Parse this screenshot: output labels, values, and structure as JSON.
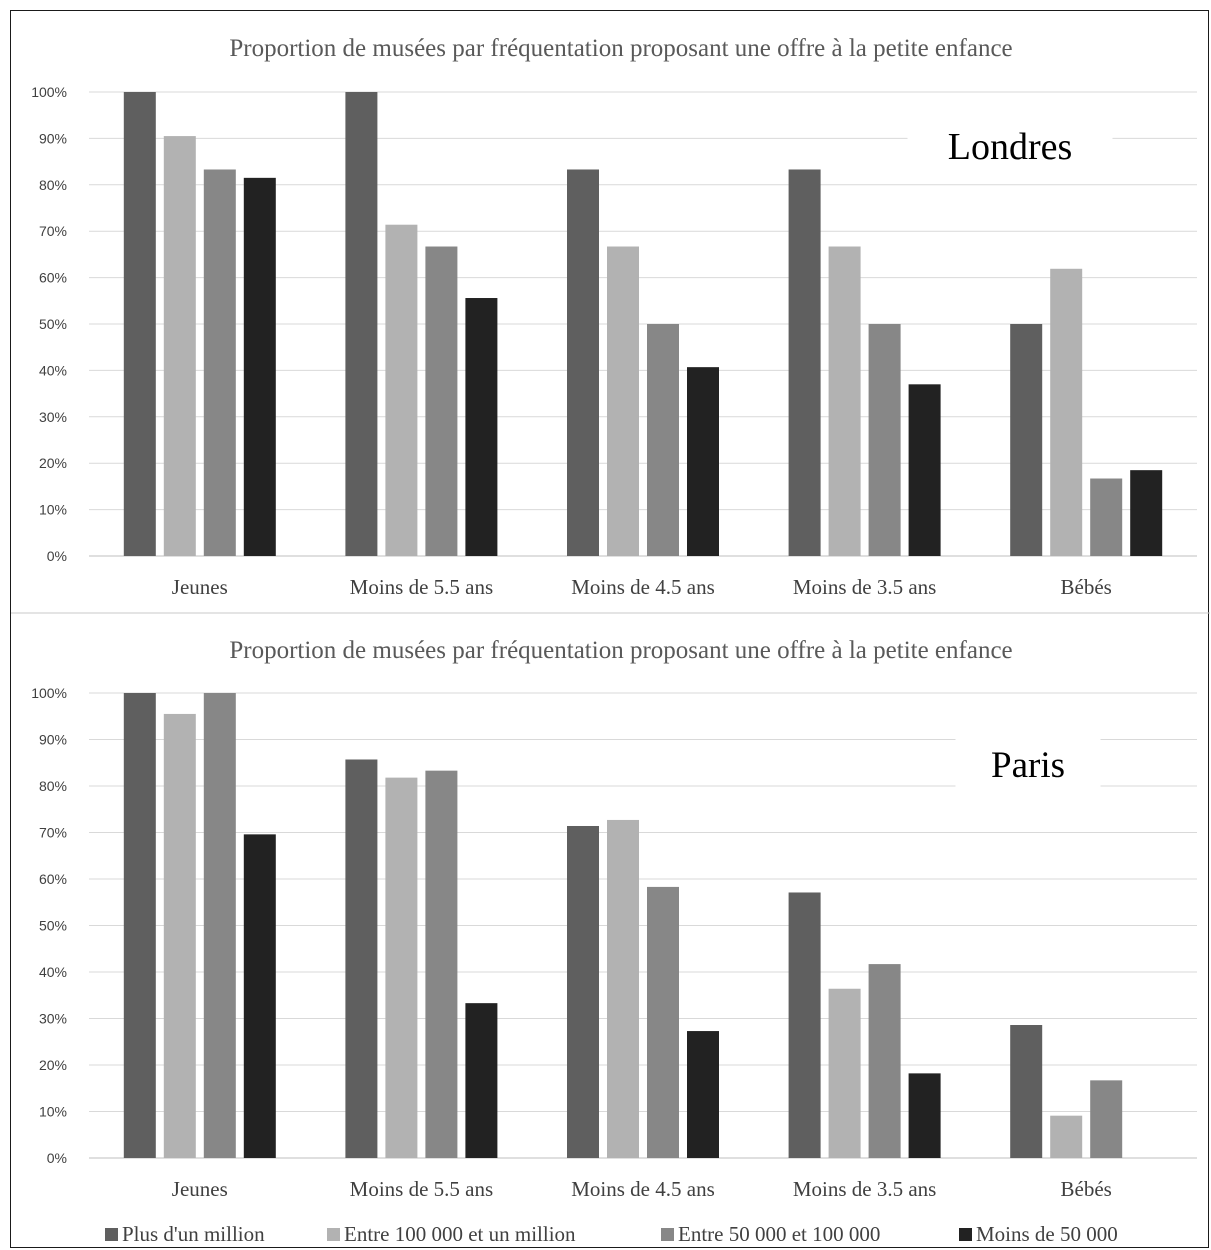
{
  "chart_data": [
    {
      "type": "bar",
      "title": "Proportion de musées par fréquentation proposant une offre à la petite enfance",
      "annotation": "Londres",
      "categories": [
        "Jeunes",
        "Moins de 5.5 ans",
        "Moins de 4.5 ans",
        "Moins de 3.5 ans",
        "Bébés"
      ],
      "series": [
        {
          "name": "Plus d'un million",
          "values": [
            100,
            100,
            83.3,
            83.3,
            50
          ]
        },
        {
          "name": "Entre 100 000 et un million",
          "values": [
            90.5,
            71.4,
            66.7,
            66.7,
            61.9
          ]
        },
        {
          "name": "Entre 50 000 et 100 000",
          "values": [
            83.3,
            66.7,
            50,
            50,
            16.7
          ]
        },
        {
          "name": "Moins de 50 000",
          "values": [
            81.5,
            55.6,
            40.7,
            37,
            18.5
          ]
        }
      ],
      "ylim": [
        0,
        100
      ],
      "yticks": [
        "0%",
        "10%",
        "20%",
        "30%",
        "40%",
        "50%",
        "60%",
        "70%",
        "80%",
        "90%",
        "100%"
      ],
      "grid": true
    },
    {
      "type": "bar",
      "title": "Proportion de musées par fréquentation proposant une offre à la petite enfance",
      "annotation": "Paris",
      "categories": [
        "Jeunes",
        "Moins de 5.5 ans",
        "Moins de 4.5 ans",
        "Moins de 3.5 ans",
        "Bébés"
      ],
      "series": [
        {
          "name": "Plus d'un million",
          "values": [
            100,
            85.7,
            71.4,
            57.1,
            28.6
          ]
        },
        {
          "name": "Entre 100 000 et un million",
          "values": [
            95.5,
            81.8,
            72.7,
            36.4,
            9.1
          ]
        },
        {
          "name": "Entre 50 000 et 100 000",
          "values": [
            100,
            83.3,
            58.3,
            41.7,
            16.7
          ]
        },
        {
          "name": "Moins de 50 000",
          "values": [
            69.6,
            33.3,
            27.3,
            18.2,
            0
          ]
        }
      ],
      "ylim": [
        0,
        100
      ],
      "yticks": [
        "0%",
        "10%",
        "20%",
        "30%",
        "40%",
        "50%",
        "60%",
        "70%",
        "80%",
        "90%",
        "100%"
      ],
      "grid": true
    }
  ],
  "legend": {
    "placement": "bottom",
    "items": [
      {
        "label": "Plus d'un million",
        "color": "#5f5f5f"
      },
      {
        "label": "Entre 100 000 et un million",
        "color": "#b2b2b2"
      },
      {
        "label": "Entre 50 000 et 100 000",
        "color": "#878787"
      },
      {
        "label": "Moins de 50 000",
        "color": "#222222"
      }
    ]
  },
  "colors": {
    "series": [
      "#5f5f5f",
      "#b2b2b2",
      "#878787",
      "#222222"
    ],
    "grid": "#d9d9d9",
    "text": "#595959",
    "title": "#595959"
  }
}
